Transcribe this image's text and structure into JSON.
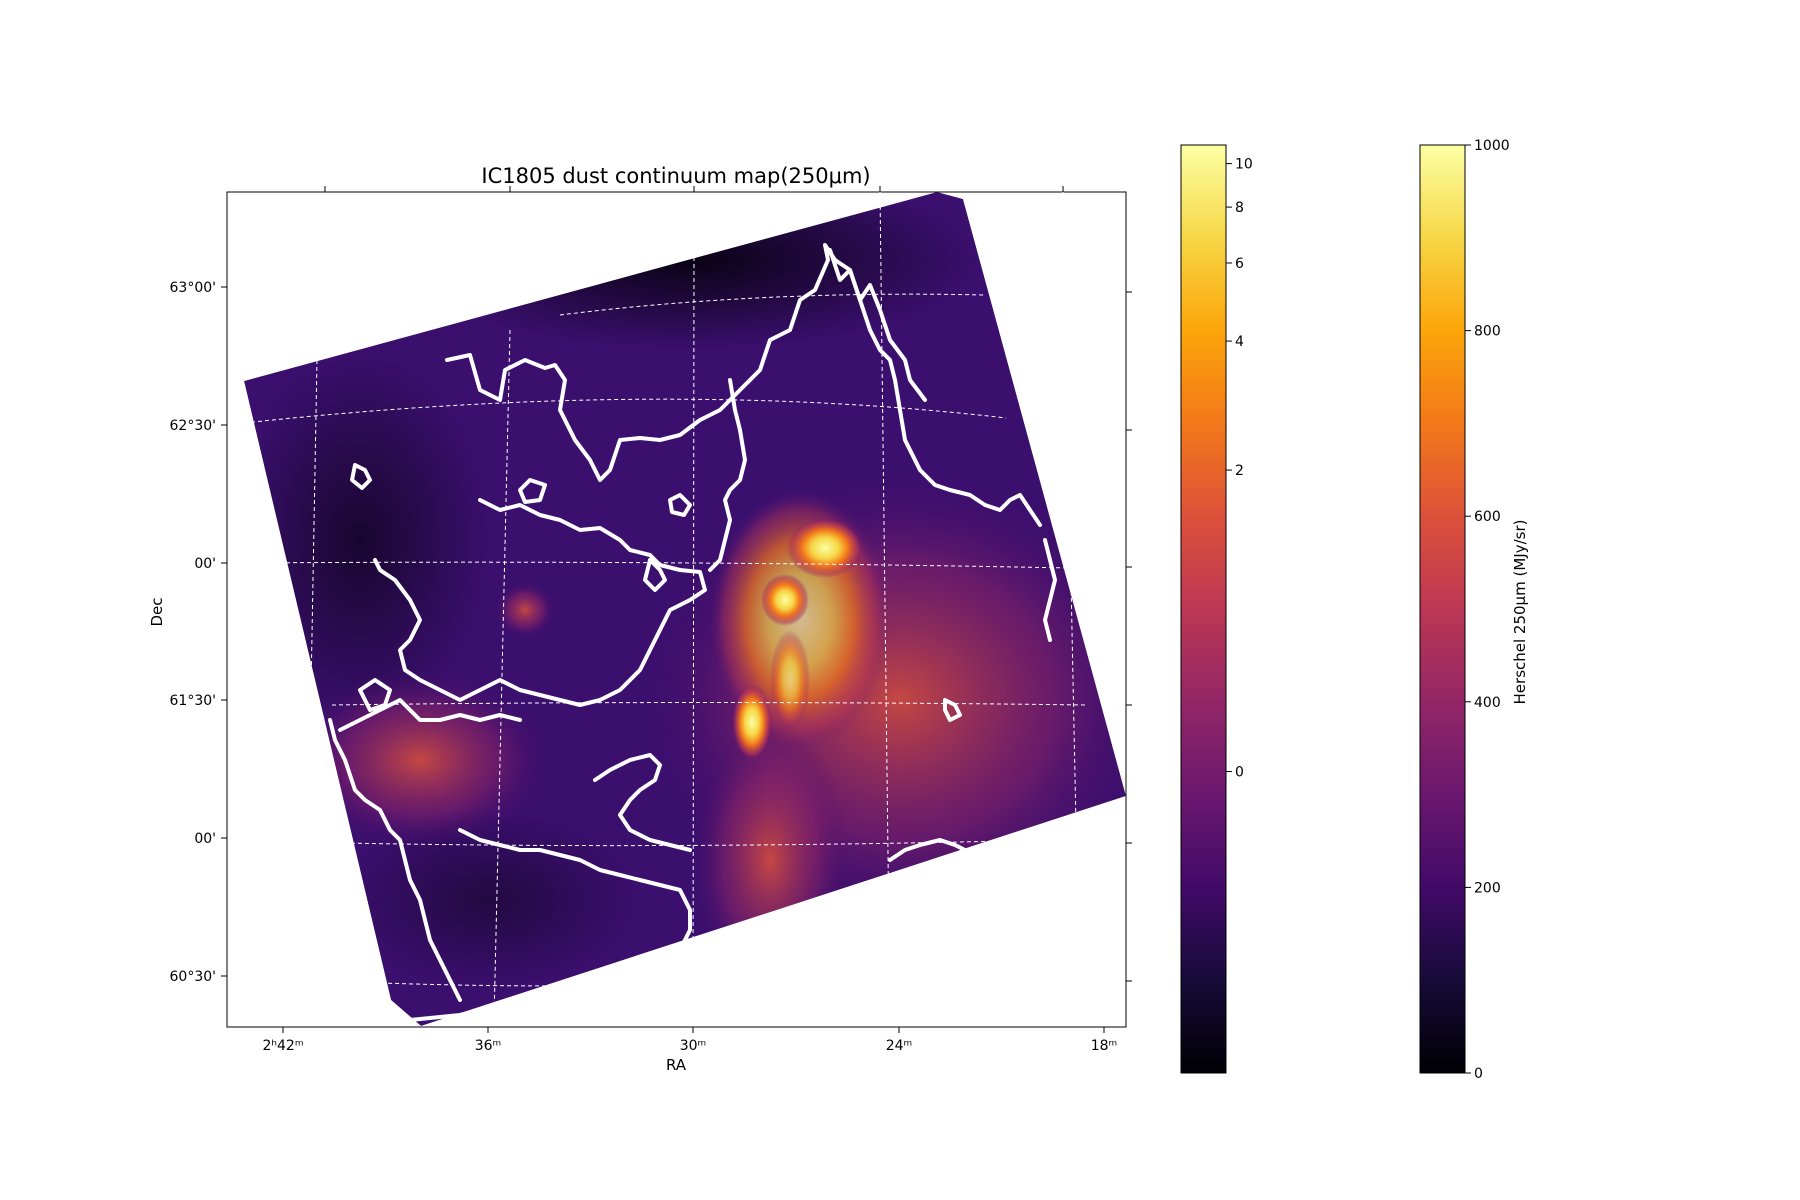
{
  "chart_data": {
    "type": "heatmap",
    "title": "IC1805 dust continuum map(250μm)",
    "xlabel": "RA",
    "ylabel": "Dec",
    "x_ticks": [
      {
        "label": "2ʰ42ᵐ",
        "ra_min": 42
      },
      {
        "label": "36ᵐ",
        "ra_min": 36
      },
      {
        "label": "30ᵐ",
        "ra_min": 30
      },
      {
        "label": "24ᵐ",
        "ra_min": 24
      },
      {
        "label": "18ᵐ",
        "ra_min": 18
      }
    ],
    "y_ticks": [
      {
        "label": "63°00'",
        "dec_deg": 63.0
      },
      {
        "label": "62°30'",
        "dec_deg": 62.5
      },
      {
        "label": "00'",
        "dec_deg": 62.0
      },
      {
        "label": "61°30'",
        "dec_deg": 61.5
      },
      {
        "label": "00'",
        "dec_deg": 61.0
      },
      {
        "label": "60°30'",
        "dec_deg": 60.5
      }
    ],
    "grid": true,
    "colormap": "inferno",
    "contour_color": "#ffffff",
    "colorbars": [
      {
        "label": "",
        "range": [
          -2,
          11
        ],
        "scale": "asinh",
        "ticks": [
          0,
          2,
          4,
          6,
          8,
          10
        ]
      },
      {
        "label": "Herschel 250μm (MJy/sr)",
        "range": [
          0,
          1000
        ],
        "scale": "linear",
        "ticks": [
          0,
          200,
          400,
          600,
          800,
          1000
        ]
      }
    ],
    "features": [
      {
        "name": "bright core north",
        "ra_min": 27.3,
        "dec_deg": 62.05,
        "intensity": "max"
      },
      {
        "name": "bright core middle",
        "ra_min": 28.0,
        "dec_deg": 61.9,
        "intensity": "max"
      },
      {
        "name": "bright core south",
        "ra_min": 28.5,
        "dec_deg": 61.45,
        "intensity": "max"
      }
    ]
  }
}
